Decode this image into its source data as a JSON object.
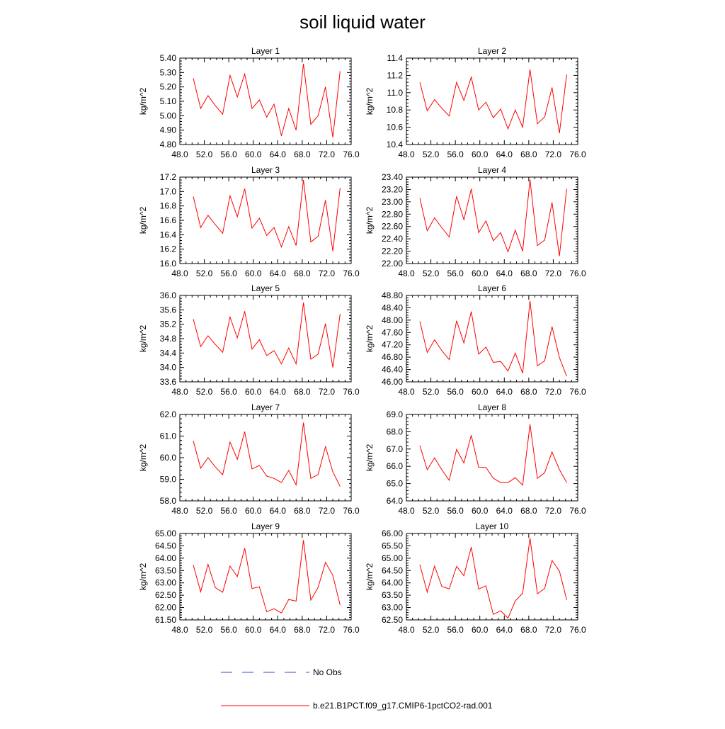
{
  "title": "soil liquid water",
  "colors": {
    "model": "#ff0000",
    "obs": "#3a4bd6",
    "axis": "#000000"
  },
  "legend": [
    {
      "label": "No Obs",
      "style": "dashed",
      "color": "#3a4bd6"
    },
    {
      "label": "b.e21.B1PCT.f09_g17.CMIP6-1pctCO2-rad.001",
      "style": "solid",
      "color": "#ff0000"
    }
  ],
  "chart_data": [
    {
      "type": "line",
      "title": "Layer 1",
      "ylabel": "kg/m^2",
      "xlim": [
        48,
        76
      ],
      "ylim": [
        4.8,
        5.4
      ],
      "x_ticks": [
        "48.0",
        "52.0",
        "56.0",
        "60.0",
        "64.0",
        "68.0",
        "72.0",
        "76.0"
      ],
      "y_ticks": [
        "4.80",
        "4.90",
        "5.00",
        "5.10",
        "5.20",
        "5.30",
        "5.40"
      ],
      "series": [
        {
          "x": [
            50.2,
            51.4,
            52.6,
            53.8,
            55.0,
            56.2,
            57.4,
            58.6,
            59.8,
            61.0,
            62.2,
            63.4,
            64.6,
            65.8,
            67.0,
            68.2,
            69.4,
            70.6,
            71.8,
            73.0,
            74.2
          ],
          "values": [
            5.26,
            5.05,
            5.14,
            5.07,
            5.01,
            5.28,
            5.13,
            5.29,
            5.05,
            5.11,
            4.99,
            5.08,
            4.86,
            5.05,
            4.9,
            5.36,
            4.94,
            5.0,
            5.2,
            4.85,
            5.31
          ]
        }
      ]
    },
    {
      "type": "line",
      "title": "Layer 2",
      "ylabel": "kg/m^2",
      "xlim": [
        48,
        76
      ],
      "ylim": [
        10.4,
        11.4
      ],
      "x_ticks": [
        "48.0",
        "52.0",
        "56.0",
        "60.0",
        "64.0",
        "68.0",
        "72.0",
        "76.0"
      ],
      "y_ticks": [
        "10.4",
        "10.6",
        "10.8",
        "11.0",
        "11.2",
        "11.4"
      ],
      "series": [
        {
          "x": [
            50.2,
            51.4,
            52.6,
            53.8,
            55.0,
            56.2,
            57.4,
            58.6,
            59.8,
            61.0,
            62.2,
            63.4,
            64.6,
            65.8,
            67.0,
            68.2,
            69.4,
            70.6,
            71.8,
            73.0,
            74.2
          ],
          "values": [
            11.12,
            10.79,
            10.92,
            10.82,
            10.73,
            11.12,
            10.91,
            11.18,
            10.8,
            10.89,
            10.71,
            10.81,
            10.58,
            10.8,
            10.6,
            11.27,
            10.64,
            10.72,
            11.06,
            10.53,
            11.21
          ]
        }
      ]
    },
    {
      "type": "line",
      "title": "Layer 3",
      "ylabel": "kg/m^2",
      "xlim": [
        48,
        76
      ],
      "ylim": [
        16.0,
        17.2
      ],
      "x_ticks": [
        "48.0",
        "52.0",
        "56.0",
        "60.0",
        "64.0",
        "68.0",
        "72.0",
        "76.0"
      ],
      "y_ticks": [
        "16.0",
        "16.2",
        "16.4",
        "16.6",
        "16.8",
        "17.0",
        "17.2"
      ],
      "series": [
        {
          "x": [
            50.2,
            51.4,
            52.6,
            53.8,
            55.0,
            56.2,
            57.4,
            58.6,
            59.8,
            61.0,
            62.2,
            63.4,
            64.6,
            65.8,
            67.0,
            68.2,
            69.4,
            70.6,
            71.8,
            73.0,
            74.2
          ],
          "values": [
            16.93,
            16.5,
            16.67,
            16.54,
            16.42,
            16.94,
            16.65,
            17.04,
            16.49,
            16.63,
            16.39,
            16.5,
            16.23,
            16.51,
            16.25,
            17.16,
            16.3,
            16.38,
            16.88,
            16.17,
            17.05
          ]
        }
      ]
    },
    {
      "type": "line",
      "title": "Layer 4",
      "ylabel": "kg/m^2",
      "xlim": [
        48,
        76
      ],
      "ylim": [
        22.0,
        23.4
      ],
      "x_ticks": [
        "48.0",
        "52.0",
        "56.0",
        "60.0",
        "64.0",
        "68.0",
        "72.0",
        "76.0"
      ],
      "y_ticks": [
        "22.00",
        "22.20",
        "22.40",
        "22.60",
        "22.80",
        "23.00",
        "23.20",
        "23.40"
      ],
      "series": [
        {
          "x": [
            50.2,
            51.4,
            52.6,
            53.8,
            55.0,
            56.2,
            57.4,
            58.6,
            59.8,
            61.0,
            62.2,
            63.4,
            64.6,
            65.8,
            67.0,
            68.2,
            69.4,
            70.6,
            71.8,
            73.0,
            74.2
          ],
          "values": [
            23.06,
            22.53,
            22.74,
            22.58,
            22.43,
            23.09,
            22.71,
            23.21,
            22.5,
            22.69,
            22.37,
            22.5,
            22.19,
            22.54,
            22.2,
            23.36,
            22.29,
            22.38,
            22.99,
            22.12,
            23.21
          ]
        }
      ]
    },
    {
      "type": "line",
      "title": "Layer 5",
      "ylabel": "kg/m^2",
      "xlim": [
        48,
        76
      ],
      "ylim": [
        33.6,
        36.0
      ],
      "x_ticks": [
        "48.0",
        "52.0",
        "56.0",
        "60.0",
        "64.0",
        "68.0",
        "72.0",
        "76.0"
      ],
      "y_ticks": [
        "33.6",
        "34.0",
        "34.4",
        "34.8",
        "35.2",
        "35.6",
        "36.0"
      ],
      "series": [
        {
          "x": [
            50.2,
            51.4,
            52.6,
            53.8,
            55.0,
            56.2,
            57.4,
            58.6,
            59.8,
            61.0,
            62.2,
            63.4,
            64.6,
            65.8,
            67.0,
            68.2,
            69.4,
            70.6,
            71.8,
            73.0,
            74.2
          ],
          "values": [
            35.34,
            34.58,
            34.88,
            34.64,
            34.42,
            35.4,
            34.82,
            35.56,
            34.51,
            34.77,
            34.33,
            34.47,
            34.1,
            34.54,
            34.1,
            35.8,
            34.23,
            34.37,
            35.22,
            34.0,
            35.49
          ]
        }
      ]
    },
    {
      "type": "line",
      "title": "Layer 6",
      "ylabel": "kg/m^2",
      "xlim": [
        48,
        76
      ],
      "ylim": [
        46.0,
        48.8
      ],
      "x_ticks": [
        "48.0",
        "52.0",
        "56.0",
        "60.0",
        "64.0",
        "68.0",
        "72.0",
        "76.0"
      ],
      "y_ticks": [
        "46.00",
        "46.40",
        "46.80",
        "47.20",
        "47.60",
        "48.00",
        "48.40",
        "48.80"
      ],
      "series": [
        {
          "x": [
            50.2,
            51.4,
            52.6,
            53.8,
            55.0,
            56.2,
            57.4,
            58.6,
            59.8,
            61.0,
            62.2,
            63.4,
            64.6,
            65.8,
            67.0,
            68.2,
            69.4,
            70.6,
            71.8,
            73.0,
            74.2
          ],
          "values": [
            47.96,
            46.95,
            47.36,
            47.01,
            46.72,
            47.98,
            47.26,
            48.28,
            46.9,
            47.13,
            46.63,
            46.66,
            46.35,
            46.93,
            46.28,
            48.62,
            46.52,
            46.68,
            47.79,
            46.79,
            46.18
          ]
        }
      ]
    },
    {
      "type": "line",
      "title": "Layer 7",
      "ylabel": "kg/m^2",
      "xlim": [
        48,
        76
      ],
      "ylim": [
        58.0,
        62.0
      ],
      "x_ticks": [
        "48.0",
        "52.0",
        "56.0",
        "60.0",
        "64.0",
        "68.0",
        "72.0",
        "76.0"
      ],
      "y_ticks": [
        "58.0",
        "59.0",
        "60.0",
        "61.0",
        "62.0"
      ],
      "series": [
        {
          "x": [
            50.2,
            51.4,
            52.6,
            53.8,
            55.0,
            56.2,
            57.4,
            58.6,
            59.8,
            61.0,
            62.2,
            63.4,
            64.6,
            65.8,
            67.0,
            68.2,
            69.4,
            70.6,
            71.8,
            73.0,
            74.2
          ],
          "values": [
            60.78,
            59.51,
            60.0,
            59.57,
            59.21,
            60.72,
            59.92,
            61.2,
            59.48,
            59.64,
            59.15,
            59.04,
            58.85,
            59.41,
            58.74,
            61.62,
            59.04,
            59.22,
            60.51,
            59.34,
            58.67
          ]
        }
      ]
    },
    {
      "type": "line",
      "title": "Layer 8",
      "ylabel": "kg/m^2",
      "xlim": [
        48,
        76
      ],
      "ylim": [
        64.0,
        69.0
      ],
      "x_ticks": [
        "48.0",
        "52.0",
        "56.0",
        "60.0",
        "64.0",
        "68.0",
        "72.0",
        "76.0"
      ],
      "y_ticks": [
        "64.0",
        "65.0",
        "66.0",
        "67.0",
        "68.0",
        "69.0"
      ],
      "series": [
        {
          "x": [
            50.2,
            51.4,
            52.6,
            53.8,
            55.0,
            56.2,
            57.4,
            58.6,
            59.8,
            61.0,
            62.2,
            63.4,
            64.6,
            65.8,
            67.0,
            68.2,
            69.4,
            70.6,
            71.8,
            73.0,
            74.2
          ],
          "values": [
            67.2,
            65.8,
            66.49,
            65.8,
            65.19,
            66.98,
            66.19,
            67.8,
            65.95,
            65.94,
            65.31,
            65.06,
            65.06,
            65.34,
            64.91,
            68.43,
            65.3,
            65.63,
            66.83,
            65.81,
            65.06
          ]
        }
      ]
    },
    {
      "type": "line",
      "title": "Layer 9",
      "ylabel": "kg/m^2",
      "xlim": [
        48,
        76
      ],
      "ylim": [
        61.5,
        65.0
      ],
      "x_ticks": [
        "48.0",
        "52.0",
        "56.0",
        "60.0",
        "64.0",
        "68.0",
        "72.0",
        "76.0"
      ],
      "y_ticks": [
        "61.50",
        "62.00",
        "62.50",
        "63.00",
        "63.50",
        "64.00",
        "64.50",
        "65.00"
      ],
      "series": [
        {
          "x": [
            50.2,
            51.4,
            52.6,
            53.8,
            55.0,
            56.2,
            57.4,
            58.6,
            59.8,
            61.0,
            62.2,
            63.4,
            64.6,
            65.8,
            67.0,
            68.2,
            69.4,
            70.6,
            71.8,
            73.0,
            74.2
          ],
          "values": [
            63.72,
            62.64,
            63.75,
            62.81,
            62.62,
            63.68,
            63.25,
            64.4,
            62.77,
            62.84,
            61.83,
            61.95,
            61.78,
            62.33,
            62.26,
            64.73,
            62.3,
            62.82,
            63.83,
            63.3,
            62.1
          ]
        }
      ]
    },
    {
      "type": "line",
      "title": "Layer 10",
      "ylabel": "kg/m^2",
      "xlim": [
        48,
        76
      ],
      "ylim": [
        62.5,
        66.0
      ],
      "x_ticks": [
        "48.0",
        "52.0",
        "56.0",
        "60.0",
        "64.0",
        "68.0",
        "72.0",
        "76.0"
      ],
      "y_ticks": [
        "62.50",
        "63.00",
        "63.50",
        "64.00",
        "64.50",
        "65.00",
        "65.50",
        "66.00"
      ],
      "series": [
        {
          "x": [
            50.2,
            51.4,
            52.6,
            53.8,
            55.0,
            56.2,
            57.4,
            58.6,
            59.8,
            61.0,
            62.2,
            63.4,
            64.6,
            65.8,
            67.0,
            68.2,
            69.4,
            70.6,
            71.8,
            73.0,
            74.2
          ],
          "values": [
            64.74,
            63.62,
            64.68,
            63.85,
            63.76,
            64.67,
            64.29,
            65.45,
            63.75,
            63.88,
            62.72,
            62.87,
            62.57,
            63.27,
            63.58,
            65.81,
            63.56,
            63.77,
            64.91,
            64.48,
            63.31
          ]
        }
      ]
    }
  ]
}
